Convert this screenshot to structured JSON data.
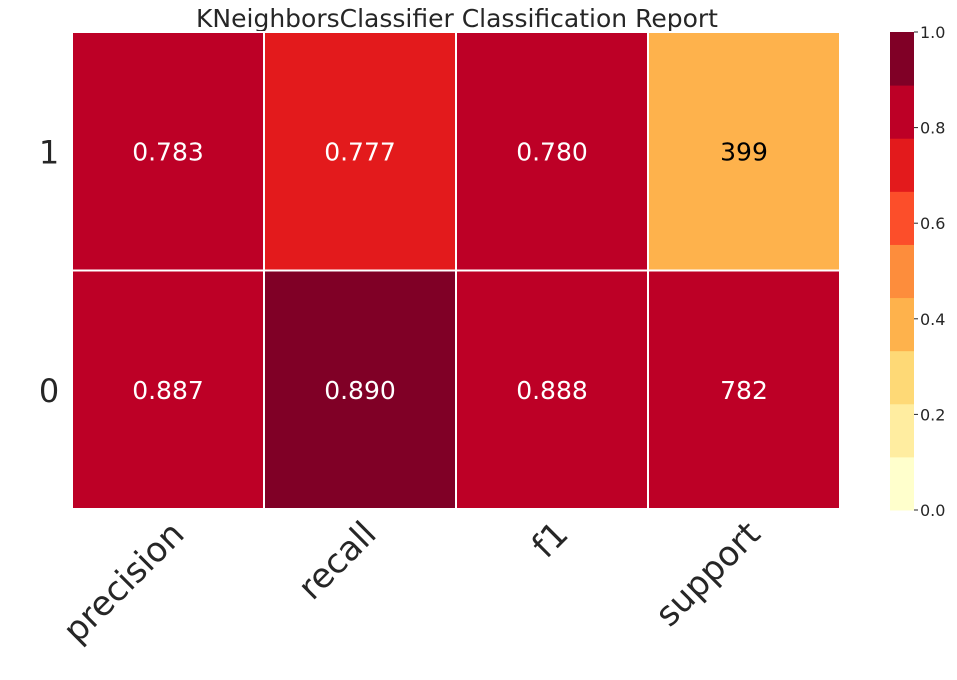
{
  "chart_data": {
    "type": "heatmap",
    "title": "KNeighborsClassifier Classification Report",
    "xlabel": "",
    "ylabel": "",
    "columns": [
      "precision",
      "recall",
      "f1",
      "support"
    ],
    "rows": [
      {
        "label": "1",
        "display": [
          "0.783",
          "0.777",
          "0.780",
          "399"
        ],
        "color_values": [
          0.783,
          0.777,
          0.78,
          0.399
        ]
      },
      {
        "label": "0",
        "display": [
          "0.887",
          "0.890",
          "0.888",
          "782"
        ],
        "color_values": [
          0.887,
          0.89,
          0.888,
          0.782
        ]
      }
    ],
    "colorbar": {
      "range": [
        0.0,
        1.0
      ],
      "ticks": [
        "0.0",
        "0.2",
        "0.4",
        "0.6",
        "0.8",
        "1.0"
      ],
      "bins": [
        "#ffffcc",
        "#ffeda0",
        "#fed976",
        "#feb24c",
        "#fd8d3c",
        "#fc4e2a",
        "#e31a1c",
        "#bd0026",
        "#800026"
      ]
    }
  }
}
